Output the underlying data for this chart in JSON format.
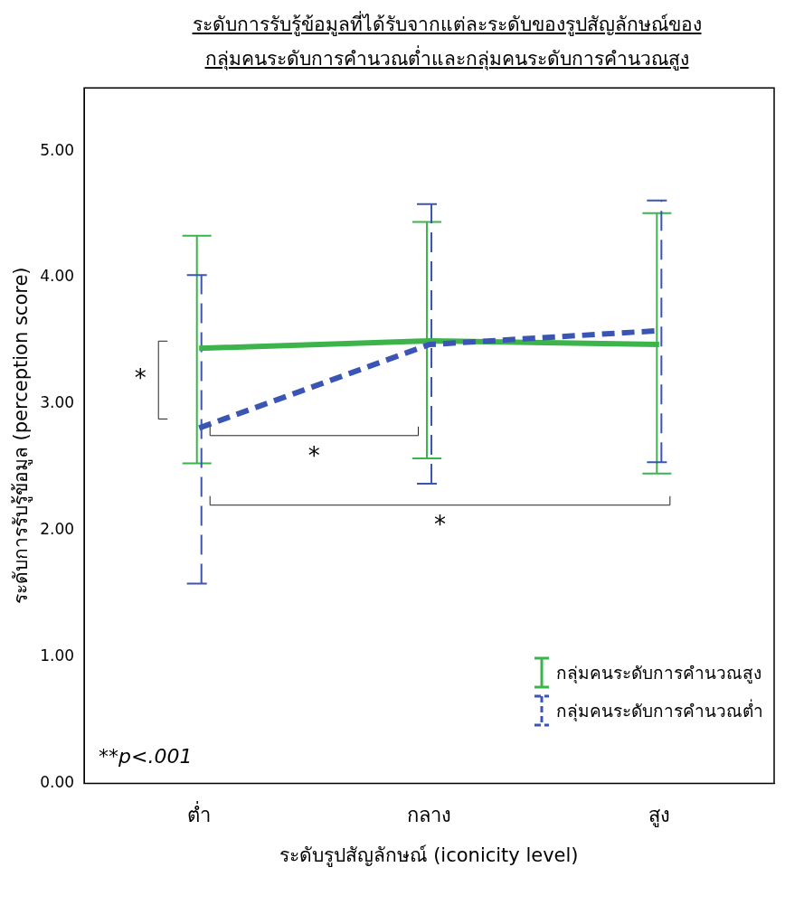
{
  "chart_data": {
    "type": "line",
    "title": "ระดับการรับรู้ข้อมูลที่ได้รับจากแต่ละระดับของรูปสัญลักษณ์ของ\nกลุ่มคนระดับการคำนวณต่ำและกลุ่มคนระดับการคำนวณสูง",
    "xlabel": "ระดับรูปสัญลักษณ์ (iconicity level)",
    "ylabel": "ระดับการรับรู้ข้อมูล (perception score)",
    "categories": [
      "ต่ำ",
      "กลาง",
      "สูง"
    ],
    "series": [
      {
        "name": "กลุ่มคนระดับการคำนวณสูง",
        "color": "#3cb44b",
        "values": [
          3.44,
          3.5,
          3.47
        ],
        "errors": [
          [
            2.53,
            4.33
          ],
          [
            2.57,
            4.44
          ],
          [
            2.45,
            4.51
          ]
        ],
        "line_style": "solid"
      },
      {
        "name": "กลุ่มคนระดับการคำนวณต่ำ",
        "color": "#3a55b4",
        "values": [
          2.81,
          3.47,
          3.58
        ],
        "errors": [
          [
            1.58,
            4.02
          ],
          [
            2.37,
            4.58
          ],
          [
            2.54,
            4.61
          ]
        ],
        "line_style": "dashed"
      }
    ],
    "ylim": [
      0,
      5.5
    ],
    "yticks": [
      {
        "value": 0,
        "label": "0.00"
      },
      {
        "value": 1,
        "label": "1.00"
      },
      {
        "value": 2,
        "label": "2.00"
      },
      {
        "value": 3,
        "label": "3.00"
      },
      {
        "value": 4,
        "label": "4.00"
      },
      {
        "value": 5,
        "label": "5.00"
      }
    ],
    "annotations": [
      "*",
      "*",
      "*",
      "**p<.001"
    ],
    "grid": false,
    "legend": "bottom right",
    "marker": "none"
  }
}
